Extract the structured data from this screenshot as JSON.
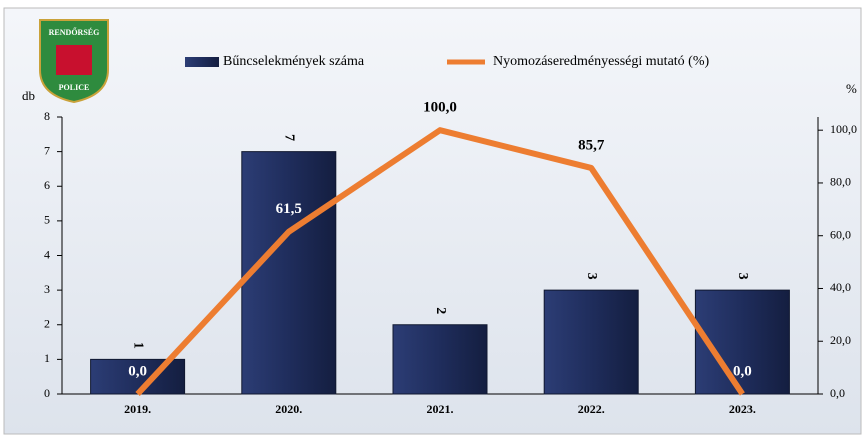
{
  "logo": {
    "top": "RENDŐRSÉG",
    "bottom": "POLICE"
  },
  "chart_data": {
    "type": "bar-line",
    "y_label": "db",
    "y2_label": "%",
    "categories": [
      "2019.",
      "2020.",
      "2021.",
      "2022.",
      "2023."
    ],
    "series": [
      {
        "name": "Bűncselekmények száma",
        "color": "#1f2d5c",
        "type": "bar",
        "values": [
          1,
          7,
          2,
          3,
          3
        ]
      },
      {
        "name": "Nyomozáseredményességi mutató (%)",
        "color": "#ed7d31",
        "type": "line",
        "axis": "y2",
        "values": [
          0.0,
          61.5,
          100.0,
          85.7,
          0.0
        ],
        "value_labels": [
          "0,0",
          "61,5",
          "100,0",
          "85,7",
          "0,0"
        ]
      }
    ],
    "ylim": [
      0,
      8
    ],
    "yticks": [
      0,
      1,
      2,
      3,
      4,
      5,
      6,
      7,
      8
    ],
    "y2lim": [
      0,
      105
    ],
    "y2ticks": [
      {
        "value": 0,
        "label": "0,0"
      },
      {
        "value": 20,
        "label": "20,0"
      },
      {
        "value": 40,
        "label": "40,0"
      },
      {
        "value": 60,
        "label": "60,0"
      },
      {
        "value": 80,
        "label": "80,0"
      },
      {
        "value": 100,
        "label": "100,0"
      }
    ],
    "legend": "top"
  }
}
